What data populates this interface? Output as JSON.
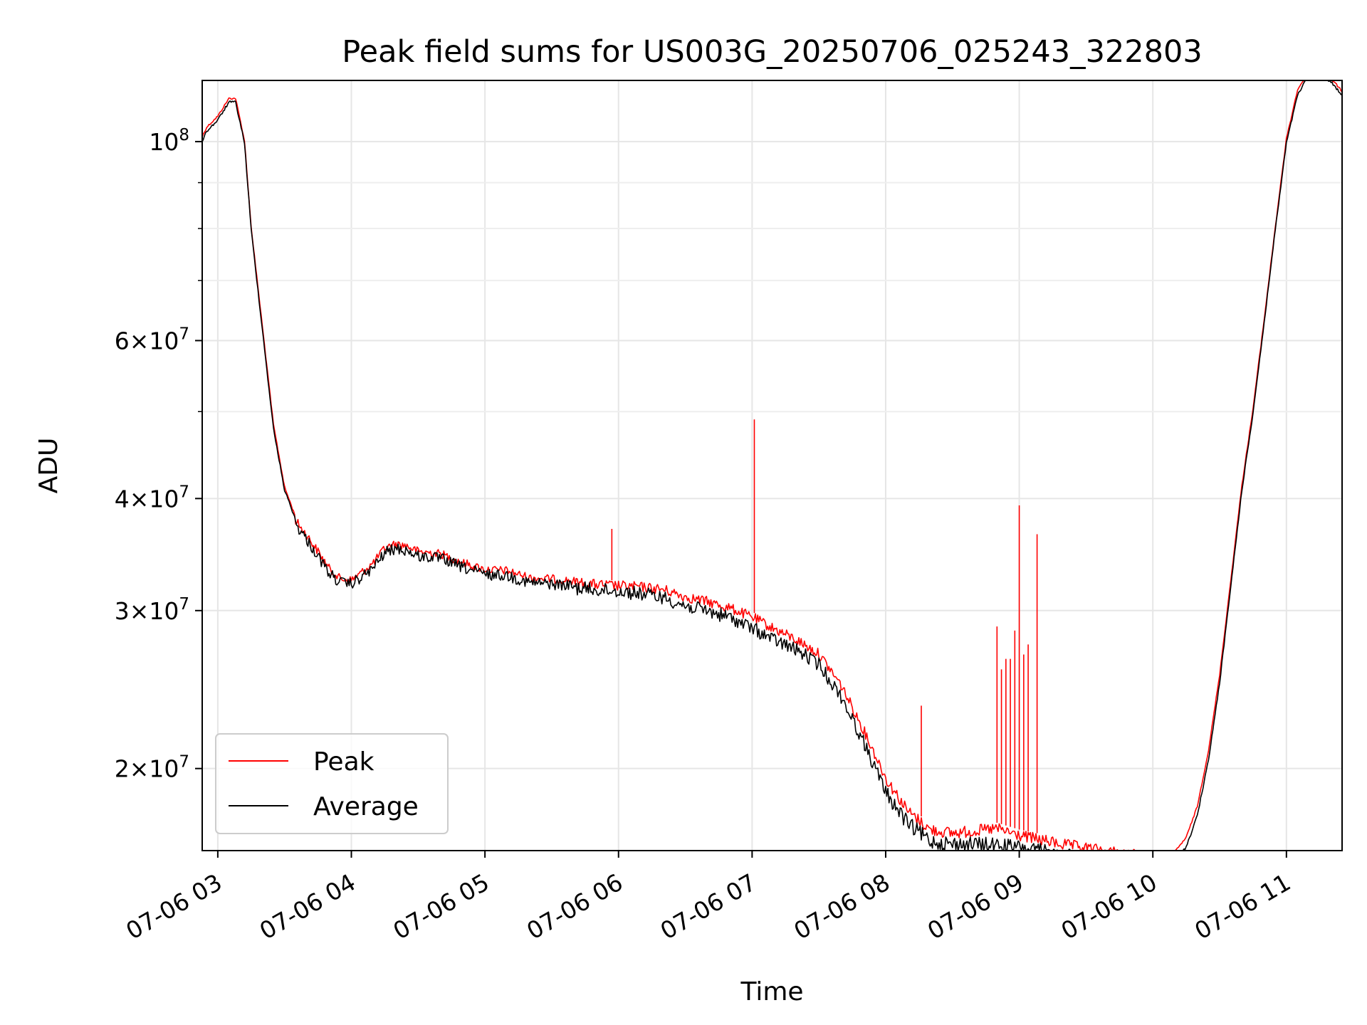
{
  "chart_data": {
    "type": "line",
    "title": "Peak field sums for US003G_20250706_025243_322803",
    "xlabel": "Time",
    "ylabel": "ADU",
    "yscale": "log",
    "xlim": [
      "2025-07-06T02:53",
      "2025-07-06T11:25"
    ],
    "ylim": [
      16200000,
      117000000
    ],
    "grid": true,
    "legend_position": "lower-left",
    "x_ticks": [
      "07-06 03",
      "07-06 04",
      "07-06 05",
      "07-06 06",
      "07-06 07",
      "07-06 08",
      "07-06 09",
      "07-06 10",
      "07-06 11"
    ],
    "y_ticks": [
      {
        "value": 100000000,
        "mantissa": "",
        "exponent": "8"
      },
      {
        "value": 60000000,
        "mantissa": "6",
        "exponent": "7"
      },
      {
        "value": 40000000,
        "mantissa": "4",
        "exponent": "7"
      },
      {
        "value": 30000000,
        "mantissa": "3",
        "exponent": "7"
      },
      {
        "value": 20000000,
        "mantissa": "2",
        "exponent": "7"
      }
    ],
    "y_minor_ticks": [
      90000000,
      80000000,
      70000000,
      50000000
    ],
    "series": [
      {
        "name": "Average",
        "color": "#000000",
        "x": [
          "02:53",
          "02:55",
          "03:00",
          "03:05",
          "03:08",
          "03:12",
          "03:15",
          "03:20",
          "03:25",
          "03:30",
          "03:35",
          "03:40",
          "03:45",
          "03:50",
          "03:55",
          "04:00",
          "04:05",
          "04:10",
          "04:15",
          "04:20",
          "04:25",
          "04:30",
          "04:40",
          "04:50",
          "05:00",
          "05:10",
          "05:20",
          "05:30",
          "05:40",
          "05:50",
          "06:00",
          "06:10",
          "06:20",
          "06:30",
          "06:40",
          "06:50",
          "07:00",
          "07:10",
          "07:20",
          "07:30",
          "07:40",
          "07:50",
          "08:00",
          "08:10",
          "08:20",
          "08:30",
          "08:40",
          "08:50",
          "09:00",
          "09:10",
          "09:20",
          "09:30",
          "09:40",
          "09:50",
          "10:00",
          "10:05",
          "10:10",
          "10:15",
          "10:20",
          "10:25",
          "10:30",
          "10:35",
          "10:40",
          "10:45",
          "10:50",
          "10:55",
          "11:00",
          "11:05",
          "11:10",
          "11:15",
          "11:20",
          "11:25"
        ],
        "values": [
          100500000,
          103000000,
          106000000,
          111000000,
          111000000,
          100000000,
          80000000,
          62000000,
          48000000,
          41000000,
          38000000,
          36500000,
          35000000,
          33500000,
          32700000,
          32600000,
          33200000,
          34000000,
          35300000,
          35700000,
          35500000,
          35000000,
          34800000,
          34000000,
          33400000,
          33300000,
          32700000,
          32600000,
          32400000,
          32200000,
          32100000,
          31900000,
          31600000,
          30900000,
          30500000,
          30000000,
          29200000,
          28300000,
          27600000,
          26600000,
          24500000,
          21800000,
          19200000,
          17700000,
          16950000,
          16800000,
          16800000,
          16750000,
          16650000,
          16500000,
          16300000,
          16200000,
          16100000,
          16000000,
          15850000,
          15700000,
          15900000,
          16400000,
          17800000,
          20500000,
          25000000,
          32000000,
          41000000,
          50000000,
          63000000,
          80000000,
          100000000,
          113000000,
          119000000,
          119000000,
          117000000,
          113000000
        ]
      },
      {
        "name": "Peak",
        "color": "#ff0000",
        "x": [
          "02:53",
          "02:55",
          "03:00",
          "03:05",
          "03:08",
          "03:12",
          "03:15",
          "03:20",
          "03:25",
          "03:30",
          "03:35",
          "03:40",
          "03:45",
          "03:50",
          "03:55",
          "04:00",
          "04:05",
          "04:10",
          "04:15",
          "04:20",
          "04:25",
          "04:30",
          "04:40",
          "04:50",
          "05:00",
          "05:10",
          "05:20",
          "05:30",
          "05:40",
          "05:50",
          "06:00",
          "06:10",
          "06:20",
          "06:30",
          "06:40",
          "06:50",
          "07:00",
          "07:10",
          "07:20",
          "07:30",
          "07:40",
          "07:50",
          "08:00",
          "08:10",
          "08:20",
          "08:30",
          "08:40",
          "08:50",
          "09:00",
          "09:10",
          "09:20",
          "09:30",
          "09:40",
          "09:50",
          "10:00",
          "10:05",
          "10:10",
          "10:15",
          "10:20",
          "10:25",
          "10:30",
          "10:35",
          "10:40",
          "10:45",
          "10:50",
          "10:55",
          "11:00",
          "11:05",
          "11:10",
          "11:15",
          "11:20",
          "11:25"
        ],
        "values": [
          101500000,
          104000000,
          107000000,
          112000000,
          112000000,
          100500000,
          80500000,
          62500000,
          48500000,
          41300000,
          38200000,
          36800000,
          35300000,
          33800000,
          32900000,
          32800000,
          33500000,
          34300000,
          35600000,
          36000000,
          35800000,
          35300000,
          35100000,
          34300000,
          33700000,
          33600000,
          33000000,
          32900000,
          32700000,
          32500000,
          32400000,
          32300000,
          32100000,
          31500000,
          31100000,
          30600000,
          29900000,
          29000000,
          28200000,
          27200000,
          25100000,
          22400000,
          19800000,
          18200000,
          17350000,
          17200000,
          17300000,
          17400000,
          17100000,
          16900000,
          16700000,
          16550000,
          16400000,
          16300000,
          16100000,
          15900000,
          16200000,
          16800000,
          18200000,
          21000000,
          25500000,
          32500000,
          41500000,
          50500000,
          63500000,
          80500000,
          101000000,
          114500000,
          120000000,
          120000000,
          118000000,
          114000000
        ]
      }
    ],
    "spikes": {
      "name": "Peak",
      "x": [
        "05:57",
        "07:01",
        "08:16",
        "08:50",
        "08:52",
        "08:54",
        "08:56",
        "08:58",
        "09:00",
        "09:02",
        "09:04",
        "09:08"
      ],
      "values": [
        37000000,
        49000000,
        23500000,
        28800000,
        25800000,
        26500000,
        26500000,
        28500000,
        39300000,
        26800000,
        27500000,
        36500000
      ]
    }
  }
}
